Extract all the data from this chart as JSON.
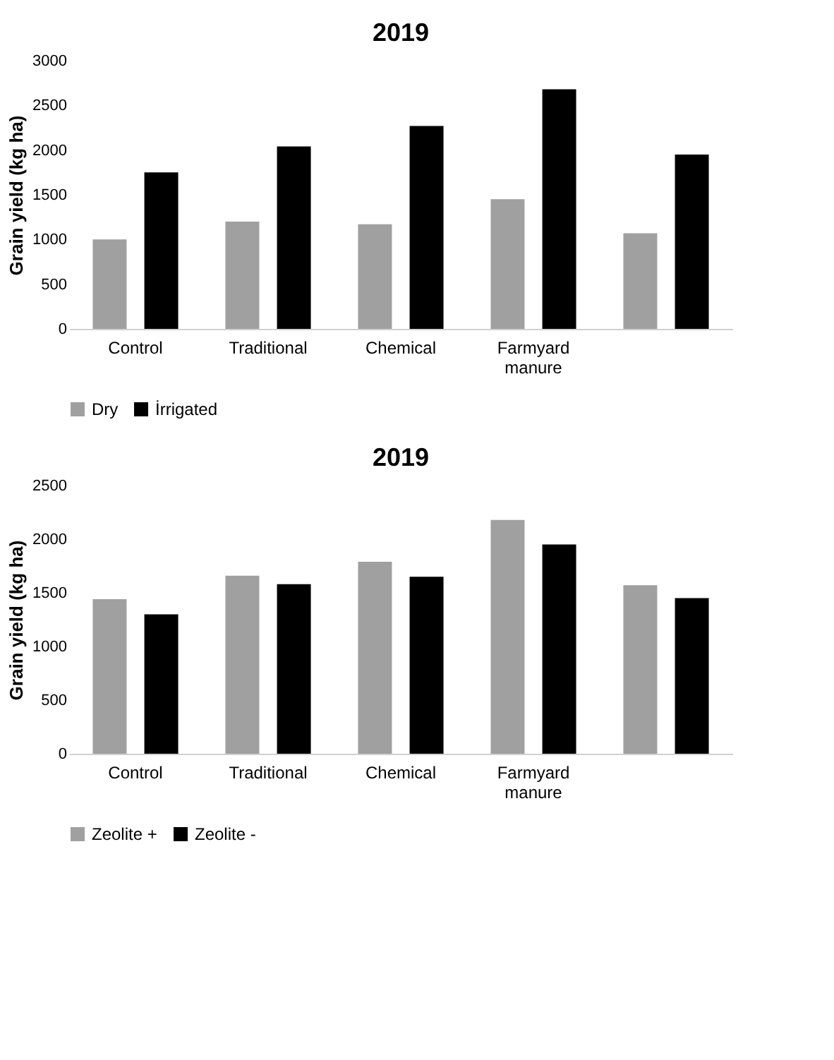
{
  "chart_data": [
    {
      "type": "bar",
      "title": "2019",
      "ylabel": "Grain yield (kg ha)",
      "categories": [
        "Control",
        "Traditional",
        "Chemical",
        "Farmyard manure",
        null
      ],
      "ylim": [
        0,
        3000
      ],
      "yticks": [
        0,
        500,
        1000,
        1500,
        2000,
        2500,
        3000
      ],
      "grid": false,
      "legend": "bottom",
      "series": [
        {
          "name": "Dry",
          "color": "#a0a0a0",
          "values": [
            1000,
            1200,
            1170,
            1450,
            1070
          ]
        },
        {
          "name": "İrrigated",
          "color": "#000000",
          "values": [
            1750,
            2040,
            2270,
            2680,
            1950
          ]
        }
      ]
    },
    {
      "type": "bar",
      "title": "2019",
      "ylabel": "Grain yield (kg ha)",
      "categories": [
        "Control",
        "Traditional",
        "Chemical",
        "Farmyard manure",
        null
      ],
      "ylim": [
        0,
        2500
      ],
      "yticks": [
        0,
        500,
        1000,
        1500,
        2000,
        2500
      ],
      "grid": false,
      "legend": "bottom",
      "series": [
        {
          "name": "Zeolite +",
          "color": "#a0a0a0",
          "values": [
            1440,
            1660,
            1790,
            2180,
            1570
          ]
        },
        {
          "name": "Zeolite -",
          "color": "#000000",
          "values": [
            1300,
            1580,
            1650,
            1950,
            1450
          ]
        }
      ]
    }
  ]
}
